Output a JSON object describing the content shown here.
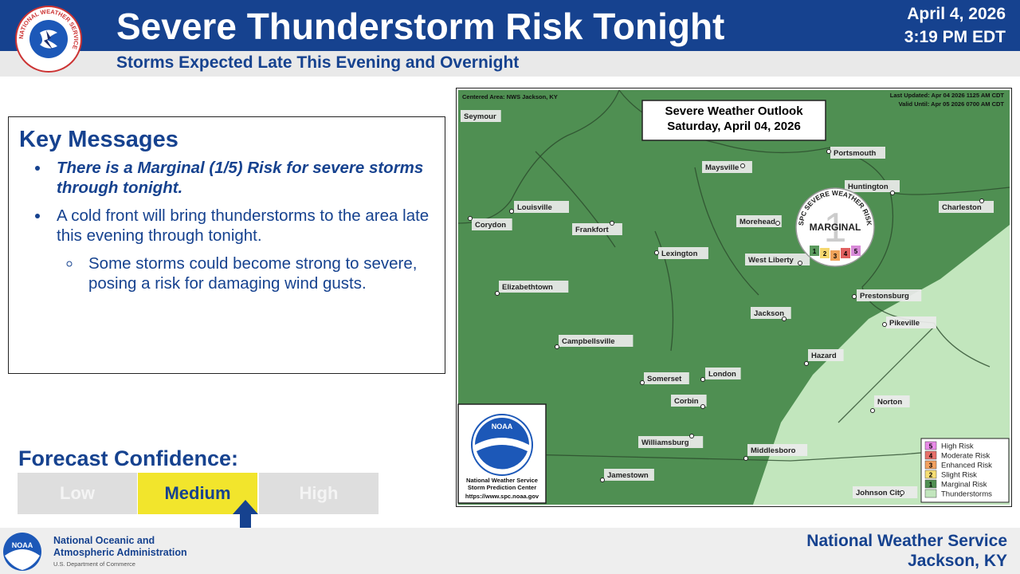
{
  "header": {
    "logo_text": "NATIONAL WEATHER SERVICE",
    "title": "Severe Thunderstorm Risk Tonight",
    "subtitle": "Storms Expected Late This Evening and Overnight",
    "date": "April 4, 2026",
    "time": "3:19 PM EDT"
  },
  "key_messages": {
    "title": "Key Messages",
    "bullets": [
      "There is a Marginal (1/5) Risk for severe storms through tonight.",
      "A cold front will bring thunderstorms to the area late this evening through tonight."
    ],
    "sub_bullets": [
      "Some storms could become strong to severe, posing a risk for damaging wind gusts."
    ]
  },
  "forecast_confidence": {
    "title": "Forecast Confidence:",
    "levels": [
      "Low",
      "Medium",
      "High"
    ]
  },
  "map": {
    "centered_area": "Centered Area: NWS Jackson, KY",
    "last_updated": "Last Updated: Apr 04 2026 1125 AM CDT",
    "valid_until": "Valid Until: Apr 05 2026 0700 AM CDT",
    "outlook_title": "Severe Weather Outlook",
    "outlook_date": "Saturday, April 04, 2026",
    "cities": [
      "Seymour",
      "Louisville",
      "Corydon",
      "Frankfort",
      "Lexington",
      "Elizabethtown",
      "Maysville",
      "Portsmouth",
      "Huntington",
      "Charleston",
      "Morehead",
      "West Liberty",
      "Prestonsburg",
      "Pikeville",
      "Jackson",
      "Hazard",
      "Campbellsville",
      "Somerset",
      "London",
      "Corbin",
      "Williamsburg",
      "Middlesboro",
      "Jamestown",
      "Norton",
      "Johnson City"
    ],
    "badge": {
      "arc_text": "SPC SEVERE WEATHER RISK",
      "level": 1,
      "label": "MARGINAL",
      "scale": [
        1,
        2,
        3,
        4,
        5
      ],
      "scale_colors": [
        "#5b9a5e",
        "#f5d76e",
        "#f0a35a",
        "#e06060",
        "#d88ad8"
      ]
    },
    "logo": {
      "name": "NOAA",
      "line1": "National Weather Service",
      "line2": "Storm Prediction Center",
      "url": "https://www.spc.noaa.gov"
    },
    "legend": [
      {
        "number": 5,
        "label": "High Risk",
        "color": "#e98ae8"
      },
      {
        "number": 4,
        "label": "Moderate Risk",
        "color": "#e8706a"
      },
      {
        "number": 3,
        "label": "Enhanced Risk",
        "color": "#f3a15f"
      },
      {
        "number": 2,
        "label": "Slight Risk",
        "color": "#f6de74"
      },
      {
        "number": 1,
        "label": "Marginal Risk",
        "color": "#4f8f52"
      },
      {
        "number": null,
        "label": "Thunderstorms",
        "color": "#c2e6bd"
      }
    ]
  },
  "footer": {
    "logo": "NOAA",
    "org_line1": "National Oceanic and",
    "org_line2": "Atmospheric Administration",
    "dept": "U.S. Department of Commerce",
    "office": "National Weather Service",
    "location": "Jackson, KY"
  }
}
